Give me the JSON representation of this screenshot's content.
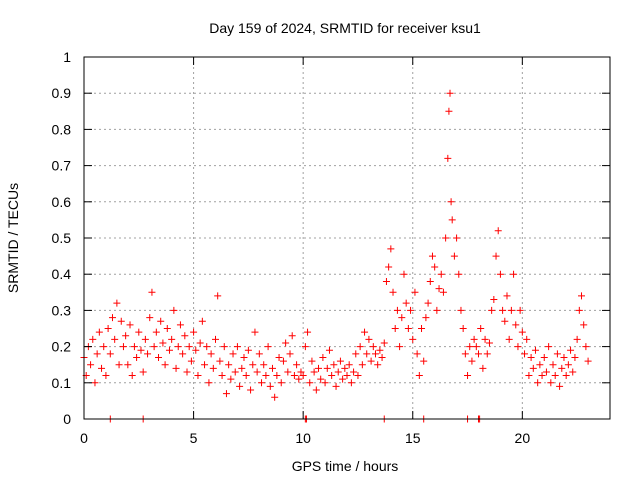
{
  "chart_data": {
    "type": "scatter",
    "title": "Day 159 of 2024, SRMTID for receiver ksu1",
    "xlabel": "GPS time / hours",
    "ylabel": "SRMTID / TECUs",
    "xlim": [
      0,
      24
    ],
    "ylim": [
      0,
      1
    ],
    "x_ticks": [
      0,
      5,
      10,
      15,
      20
    ],
    "x_tick_labels": [
      "0",
      "5",
      "10",
      "15",
      "20"
    ],
    "y_ticks": [
      0,
      0.1,
      0.2,
      0.3,
      0.4,
      0.5,
      0.6,
      0.7,
      0.8,
      0.9,
      1
    ],
    "y_tick_labels": [
      "0",
      "0.1",
      "0.2",
      "0.3",
      "0.4",
      "0.5",
      "0.6",
      "0.7",
      "0.8",
      "0.9",
      "1"
    ],
    "grid": true,
    "marker": "+",
    "color": "#ff0000",
    "series": [
      {
        "name": "SRMTID",
        "points": [
          [
            0.0,
            0.17
          ],
          [
            0.1,
            0.12
          ],
          [
            0.2,
            0.2
          ],
          [
            0.3,
            0.15
          ],
          [
            0.4,
            0.22
          ],
          [
            0.5,
            0.1
          ],
          [
            0.6,
            0.18
          ],
          [
            0.7,
            0.24
          ],
          [
            0.8,
            0.14
          ],
          [
            0.9,
            0.2
          ],
          [
            1.0,
            0.12
          ],
          [
            1.1,
            0.25
          ],
          [
            1.2,
            0.18
          ],
          [
            1.3,
            0.28
          ],
          [
            1.4,
            0.22
          ],
          [
            1.5,
            0.32
          ],
          [
            1.6,
            0.15
          ],
          [
            1.7,
            0.27
          ],
          [
            1.8,
            0.2
          ],
          [
            1.9,
            0.23
          ],
          [
            2.0,
            0.15
          ],
          [
            2.1,
            0.26
          ],
          [
            2.2,
            0.12
          ],
          [
            2.3,
            0.2
          ],
          [
            2.4,
            0.17
          ],
          [
            2.5,
            0.24
          ],
          [
            2.6,
            0.19
          ],
          [
            2.7,
            0.13
          ],
          [
            2.8,
            0.22
          ],
          [
            2.9,
            0.18
          ],
          [
            3.0,
            0.28
          ],
          [
            3.1,
            0.35
          ],
          [
            3.2,
            0.2
          ],
          [
            3.3,
            0.24
          ],
          [
            3.4,
            0.17
          ],
          [
            3.5,
            0.27
          ],
          [
            3.6,
            0.21
          ],
          [
            3.7,
            0.15
          ],
          [
            3.8,
            0.25
          ],
          [
            3.9,
            0.19
          ],
          [
            4.0,
            0.22
          ],
          [
            4.1,
            0.3
          ],
          [
            4.2,
            0.14
          ],
          [
            4.3,
            0.2
          ],
          [
            4.4,
            0.26
          ],
          [
            4.5,
            0.18
          ],
          [
            4.6,
            0.23
          ],
          [
            4.7,
            0.13
          ],
          [
            4.8,
            0.2
          ],
          [
            4.9,
            0.16
          ],
          [
            5.0,
            0.24
          ],
          [
            5.1,
            0.19
          ],
          [
            5.2,
            0.12
          ],
          [
            5.3,
            0.21
          ],
          [
            5.4,
            0.27
          ],
          [
            5.5,
            0.15
          ],
          [
            5.6,
            0.2
          ],
          [
            5.7,
            0.1
          ],
          [
            5.8,
            0.18
          ],
          [
            5.9,
            0.14
          ],
          [
            6.0,
            0.22
          ],
          [
            6.1,
            0.34
          ],
          [
            6.2,
            0.16
          ],
          [
            6.3,
            0.12
          ],
          [
            6.4,
            0.2
          ],
          [
            6.5,
            0.07
          ],
          [
            6.6,
            0.15
          ],
          [
            6.7,
            0.11
          ],
          [
            6.8,
            0.18
          ],
          [
            6.9,
            0.13
          ],
          [
            7.0,
            0.2
          ],
          [
            7.1,
            0.09
          ],
          [
            7.2,
            0.14
          ],
          [
            7.3,
            0.17
          ],
          [
            7.4,
            0.12
          ],
          [
            7.5,
            0.19
          ],
          [
            7.6,
            0.08
          ],
          [
            7.7,
            0.15
          ],
          [
            7.8,
            0.24
          ],
          [
            7.9,
            0.13
          ],
          [
            8.0,
            0.18
          ],
          [
            8.1,
            0.1
          ],
          [
            8.2,
            0.15
          ],
          [
            8.3,
            0.12
          ],
          [
            8.4,
            0.2
          ],
          [
            8.5,
            0.09
          ],
          [
            8.6,
            0.14
          ],
          [
            8.7,
            0.06
          ],
          [
            8.8,
            0.12
          ],
          [
            8.9,
            0.17
          ],
          [
            9.0,
            0.1
          ],
          [
            9.1,
            0.16
          ],
          [
            9.2,
            0.21
          ],
          [
            9.3,
            0.13
          ],
          [
            9.4,
            0.18
          ],
          [
            9.5,
            0.23
          ],
          [
            9.6,
            0.12
          ],
          [
            9.7,
            0.15
          ],
          [
            9.8,
            0.11
          ],
          [
            9.9,
            0.13
          ],
          [
            10.0,
            0.12
          ],
          [
            10.1,
            0.2
          ],
          [
            10.2,
            0.24
          ],
          [
            10.3,
            0.1
          ],
          [
            10.4,
            0.16
          ],
          [
            10.5,
            0.13
          ],
          [
            10.6,
            0.08
          ],
          [
            10.7,
            0.14
          ],
          [
            10.8,
            0.11
          ],
          [
            10.9,
            0.17
          ],
          [
            11.0,
            0.1
          ],
          [
            11.1,
            0.14
          ],
          [
            11.2,
            0.19
          ],
          [
            11.3,
            0.12
          ],
          [
            11.4,
            0.15
          ],
          [
            11.5,
            0.09
          ],
          [
            11.6,
            0.13
          ],
          [
            11.7,
            0.16
          ],
          [
            11.8,
            0.11
          ],
          [
            11.9,
            0.14
          ],
          [
            12.0,
            0.12
          ],
          [
            12.1,
            0.15
          ],
          [
            12.2,
            0.1
          ],
          [
            12.3,
            0.13
          ],
          [
            12.4,
            0.18
          ],
          [
            12.5,
            0.12
          ],
          [
            12.6,
            0.2
          ],
          [
            12.7,
            0.15
          ],
          [
            12.8,
            0.24
          ],
          [
            12.9,
            0.18
          ],
          [
            13.0,
            0.22
          ],
          [
            13.1,
            0.16
          ],
          [
            13.2,
            0.2
          ],
          [
            13.3,
            0.18
          ],
          [
            13.4,
            0.15
          ],
          [
            13.5,
            0.19
          ],
          [
            13.6,
            0.17
          ],
          [
            13.7,
            0.21
          ],
          [
            13.8,
            0.38
          ],
          [
            13.9,
            0.42
          ],
          [
            14.0,
            0.47
          ],
          [
            14.1,
            0.35
          ],
          [
            14.2,
            0.25
          ],
          [
            14.3,
            0.3
          ],
          [
            14.4,
            0.2
          ],
          [
            14.5,
            0.28
          ],
          [
            14.6,
            0.4
          ],
          [
            14.7,
            0.32
          ],
          [
            14.8,
            0.25
          ],
          [
            14.9,
            0.3
          ],
          [
            15.0,
            0.22
          ],
          [
            15.1,
            0.35
          ],
          [
            15.2,
            0.18
          ],
          [
            15.3,
            0.12
          ],
          [
            15.4,
            0.25
          ],
          [
            15.5,
            0.16
          ],
          [
            15.6,
            0.28
          ],
          [
            15.7,
            0.32
          ],
          [
            15.8,
            0.38
          ],
          [
            15.9,
            0.45
          ],
          [
            16.0,
            0.42
          ],
          [
            16.1,
            0.3
          ],
          [
            16.2,
            0.36
          ],
          [
            16.3,
            0.4
          ],
          [
            16.4,
            0.35
          ],
          [
            16.5,
            0.5
          ],
          [
            16.6,
            0.72
          ],
          [
            16.65,
            0.85
          ],
          [
            16.7,
            0.9
          ],
          [
            16.75,
            0.6
          ],
          [
            16.8,
            0.55
          ],
          [
            16.9,
            0.45
          ],
          [
            17.0,
            0.5
          ],
          [
            17.1,
            0.4
          ],
          [
            17.2,
            0.3
          ],
          [
            17.3,
            0.25
          ],
          [
            17.4,
            0.18
          ],
          [
            17.5,
            0.12
          ],
          [
            17.6,
            0.2
          ],
          [
            17.7,
            0.16
          ],
          [
            17.8,
            0.22
          ],
          [
            17.9,
            0.2
          ],
          [
            18.0,
            0.18
          ],
          [
            18.1,
            0.25
          ],
          [
            18.2,
            0.14
          ],
          [
            18.3,
            0.22
          ],
          [
            18.4,
            0.18
          ],
          [
            18.5,
            0.21
          ],
          [
            18.6,
            0.3
          ],
          [
            18.7,
            0.33
          ],
          [
            18.8,
            0.45
          ],
          [
            18.9,
            0.52
          ],
          [
            19.0,
            0.4
          ],
          [
            19.1,
            0.3
          ],
          [
            19.2,
            0.27
          ],
          [
            19.3,
            0.34
          ],
          [
            19.4,
            0.22
          ],
          [
            19.5,
            0.3
          ],
          [
            19.6,
            0.4
          ],
          [
            19.7,
            0.26
          ],
          [
            19.8,
            0.2
          ],
          [
            19.9,
            0.3
          ],
          [
            20.0,
            0.24
          ],
          [
            20.1,
            0.18
          ],
          [
            20.2,
            0.22
          ],
          [
            20.3,
            0.12
          ],
          [
            20.4,
            0.17
          ],
          [
            20.5,
            0.14
          ],
          [
            20.6,
            0.19
          ],
          [
            20.7,
            0.1
          ],
          [
            20.8,
            0.15
          ],
          [
            20.9,
            0.12
          ],
          [
            21.0,
            0.17
          ],
          [
            21.1,
            0.13
          ],
          [
            21.2,
            0.2
          ],
          [
            21.3,
            0.1
          ],
          [
            21.4,
            0.15
          ],
          [
            21.5,
            0.12
          ],
          [
            21.6,
            0.18
          ],
          [
            21.7,
            0.09
          ],
          [
            21.8,
            0.14
          ],
          [
            21.9,
            0.17
          ],
          [
            22.0,
            0.12
          ],
          [
            22.1,
            0.15
          ],
          [
            22.2,
            0.19
          ],
          [
            22.3,
            0.13
          ],
          [
            22.4,
            0.17
          ],
          [
            22.5,
            0.22
          ],
          [
            22.6,
            0.3
          ],
          [
            22.7,
            0.34
          ],
          [
            22.8,
            0.26
          ],
          [
            22.9,
            0.2
          ],
          [
            23.0,
            0.16
          ],
          [
            1.2,
            0.0
          ],
          [
            2.7,
            0.0
          ],
          [
            10.1,
            0.0
          ],
          [
            10.15,
            0.0
          ],
          [
            13.7,
            0.0
          ],
          [
            15.5,
            0.0
          ],
          [
            17.5,
            0.0
          ],
          [
            18.0,
            0.0
          ],
          [
            18.05,
            0.0
          ]
        ]
      }
    ]
  }
}
